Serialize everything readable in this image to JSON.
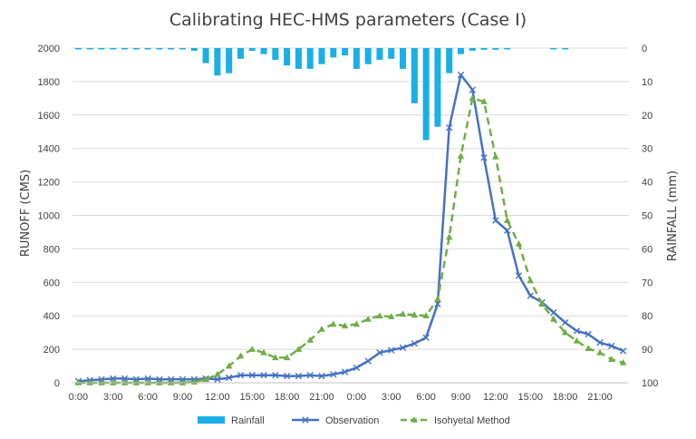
{
  "chart_data": {
    "type": "line",
    "title": "Calibrating HEC-HMS parameters (Case Ⅰ)",
    "ylabel_left": "RUNOFF (CMS)",
    "ylabel_right": "RAINFALL (mm)",
    "ylim_left": [
      0,
      2000
    ],
    "ylim_right": [
      0,
      100
    ],
    "right_axis_inverted": true,
    "yticks_left": [
      0,
      200,
      400,
      600,
      800,
      1000,
      1200,
      1400,
      1600,
      1800,
      2000
    ],
    "yticks_right": [
      0,
      10,
      20,
      30,
      40,
      50,
      60,
      70,
      80,
      90,
      100
    ],
    "xtick_labels": [
      "0:00",
      "3:00",
      "6:00",
      "9:00",
      "12:00",
      "15:00",
      "18:00",
      "21:00",
      "0:00",
      "3:00",
      "6:00",
      "9:00",
      "12:00",
      "15:00",
      "18:00",
      "21:00"
    ],
    "xtick_hour_index": [
      0,
      3,
      6,
      9,
      12,
      15,
      18,
      21,
      24,
      27,
      30,
      33,
      36,
      39,
      42,
      45
    ],
    "x_hours": [
      0,
      1,
      2,
      3,
      4,
      5,
      6,
      7,
      8,
      9,
      10,
      11,
      12,
      13,
      14,
      15,
      16,
      17,
      18,
      19,
      20,
      21,
      22,
      23,
      24,
      25,
      26,
      27,
      28,
      29,
      30,
      31,
      32,
      33,
      34,
      35,
      36,
      37,
      38,
      39,
      40,
      41,
      42,
      43,
      44,
      45,
      46,
      47
    ],
    "grid": true,
    "legend_position": "bottom",
    "series": [
      {
        "name": "Rainfall",
        "type": "bar",
        "axis": "right",
        "color": "#1AAFE6",
        "values": [
          0.3,
          0.3,
          0.3,
          0.3,
          0.3,
          0.3,
          0.3,
          0.3,
          0.3,
          0.3,
          0.8,
          4.5,
          8.2,
          7.5,
          3.2,
          0.8,
          1.8,
          3.5,
          5.2,
          6.2,
          6.2,
          4.8,
          2.8,
          2.2,
          6.2,
          4.8,
          3.5,
          3.2,
          6.2,
          16.5,
          27.5,
          23.5,
          7.5,
          1.8,
          0.8,
          0.5,
          0.5,
          0.3,
          0,
          0,
          0,
          0.3,
          0.3,
          0,
          0,
          0,
          0,
          0
        ]
      },
      {
        "name": "Observation",
        "type": "line",
        "axis": "left",
        "color": "#4472C4",
        "marker": "x",
        "values": [
          10,
          15,
          20,
          25,
          25,
          20,
          25,
          20,
          20,
          20,
          20,
          25,
          20,
          30,
          45,
          45,
          45,
          45,
          40,
          40,
          45,
          40,
          50,
          65,
          90,
          130,
          180,
          195,
          210,
          235,
          270,
          470,
          1525,
          1840,
          1750,
          1345,
          970,
          910,
          640,
          520,
          480,
          420,
          360,
          310,
          290,
          240,
          220,
          190
        ]
      },
      {
        "name": "Isohyetal Method",
        "type": "line",
        "axis": "left",
        "color": "#70AD47",
        "marker": "triangle",
        "dashed": true,
        "values": [
          0,
          0,
          0,
          0,
          0,
          0,
          0,
          0,
          0,
          0,
          5,
          20,
          50,
          100,
          160,
          200,
          180,
          150,
          150,
          200,
          255,
          320,
          350,
          340,
          350,
          380,
          400,
          395,
          410,
          405,
          400,
          500,
          870,
          1355,
          1700,
          1680,
          1350,
          970,
          830,
          610,
          470,
          380,
          300,
          250,
          205,
          180,
          140,
          120
        ]
      }
    ]
  }
}
